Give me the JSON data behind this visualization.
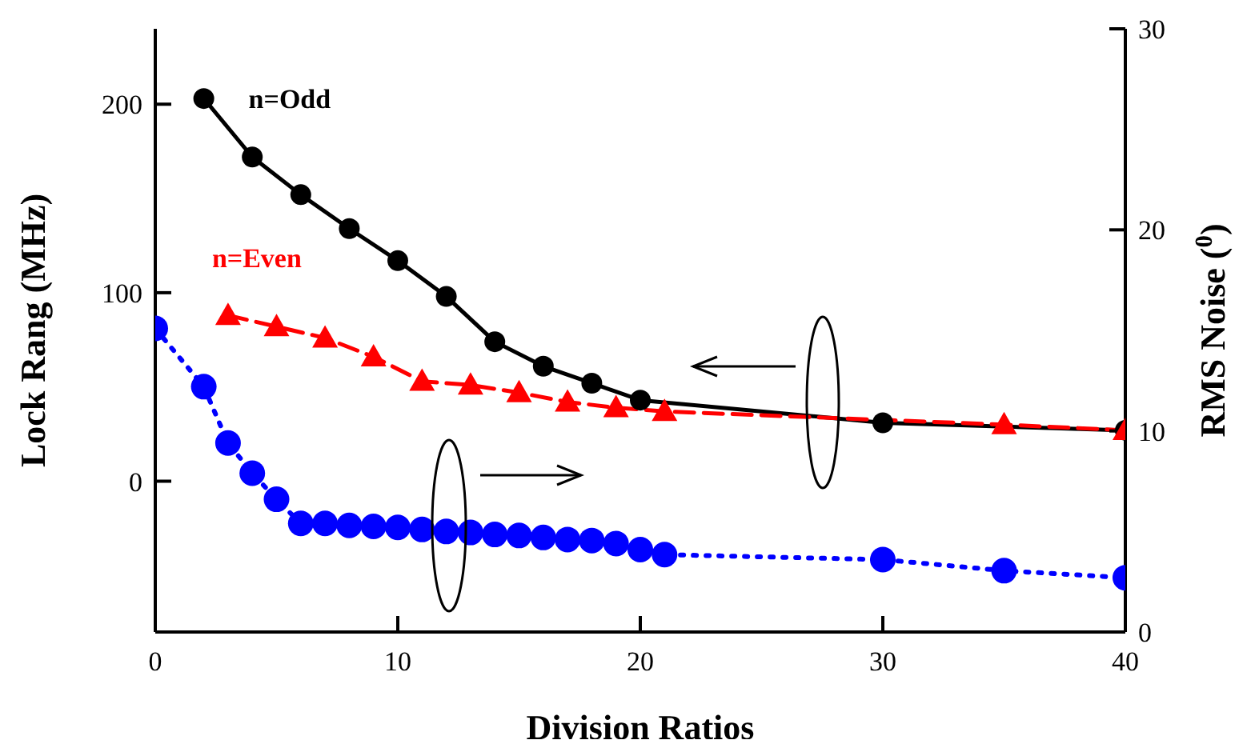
{
  "chart_data": {
    "type": "line",
    "xlabel": "Division Ratios",
    "ylabel": "Lock Rang (MHz)",
    "y2label": "RMS Noise ($^{0}$)",
    "xlim": [
      0,
      40
    ],
    "xticks": [
      0,
      10,
      20,
      30,
      40
    ],
    "ylim": [
      -80,
      240
    ],
    "yticks": [
      0,
      100,
      200
    ],
    "y2lim": [
      0,
      30
    ],
    "y2ticks": [
      0,
      10,
      20,
      30
    ],
    "series": [
      {
        "name": "n=Odd",
        "color": "#000000",
        "marker": "circle",
        "line_style": "solid",
        "x": [
          2,
          4,
          6,
          8,
          10,
          12,
          14,
          16,
          18,
          20,
          30,
          40
        ],
        "values": [
          203,
          172,
          152,
          134,
          117,
          98,
          74,
          61,
          52,
          43,
          31,
          27
        ]
      },
      {
        "name": "n=Even",
        "color": "#ff0000",
        "marker": "triangle",
        "line_style": "dashed",
        "x": [
          3,
          5,
          7,
          9,
          11,
          13,
          15,
          17,
          19,
          21,
          35,
          40
        ],
        "values": [
          88,
          82,
          76,
          66,
          53,
          51,
          47,
          42,
          39,
          37,
          30,
          27
        ]
      },
      {
        "color": "#0000ff",
        "marker": "circle",
        "line_style": "dotted",
        "axis": "y2",
        "x": [
          0,
          2,
          3,
          4,
          5,
          6,
          7,
          8,
          9,
          10,
          11,
          12,
          13,
          14,
          15,
          16,
          17,
          18,
          19,
          20,
          21,
          30,
          35,
          40
        ],
        "values": [
          15.1,
          12.2,
          9.4,
          7.9,
          6.6,
          5.4,
          5.4,
          5.3,
          5.25,
          5.2,
          5.1,
          5.0,
          4.95,
          4.85,
          4.8,
          4.7,
          4.6,
          4.55,
          4.4,
          4.1,
          3.85,
          3.6,
          3.05,
          2.7
        ]
      }
    ]
  }
}
